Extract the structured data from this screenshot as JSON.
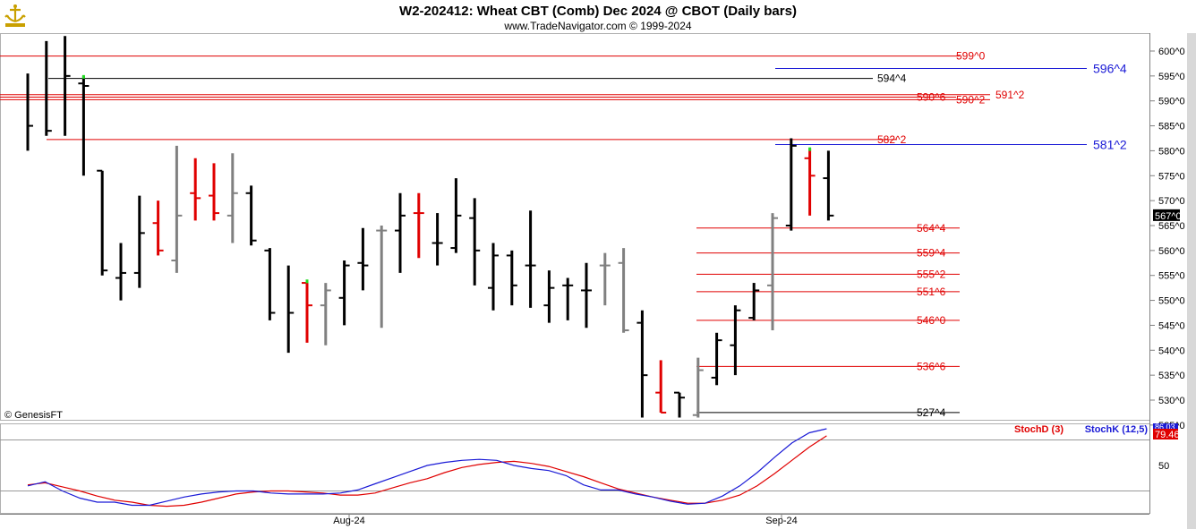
{
  "header": {
    "title": "W2-202412:  Wheat CBT (Comb) Dec 2024 @ CBOT  (Daily bars)",
    "subtitle": "www.TradeNavigator.com © 1999-2024"
  },
  "watermark": "© GenesisFT",
  "icons": {
    "logo": "anchor-ship-logo-icon"
  },
  "colors": {
    "up": "#000000",
    "down": "#e00000",
    "neutral": "#808080",
    "stochK": "#1a1ad6",
    "stochD": "#e00000",
    "level_red": "#e00000",
    "level_blue": "#1a1ad6",
    "level_black": "#000000"
  },
  "chart_data": [
    {
      "type": "ohlc",
      "title": "W2-202412:  Wheat CBT (Comb) Dec 2024 @ CBOT  (Daily bars)",
      "ylim": [
        523.0,
        603.0
      ],
      "y_ticks": [
        "600^0",
        "595^0",
        "590^0",
        "585^0",
        "580^0",
        "575^0",
        "570^0",
        "565^0",
        "560^0",
        "555^0",
        "550^0",
        "545^0",
        "540^0",
        "535^0",
        "530^0",
        "525^0"
      ],
      "x_ticks": [
        "Aug-24",
        "Sep-24"
      ],
      "last_price_label": "567^0",
      "bars": [
        {
          "h": 595.5,
          "l": 580.0,
          "c": 585.0,
          "color": "black"
        },
        {
          "h": 602.0,
          "l": 583.0,
          "c": 584.0,
          "color": "black"
        },
        {
          "h": 603.0,
          "l": 583.0,
          "c": 595.0,
          "color": "black"
        },
        {
          "h": 595.0,
          "l": 575.0,
          "c": 593.0,
          "o": 593.5,
          "color": "black",
          "mark": "green"
        },
        {
          "h": 576.0,
          "l": 555.0,
          "c": 556.0,
          "o": 576.0,
          "color": "black"
        },
        {
          "h": 561.5,
          "l": 550.0,
          "c": 555.5,
          "o": 554.5,
          "color": "black"
        },
        {
          "h": 571.0,
          "l": 552.5,
          "c": 563.5,
          "o": 555.5,
          "color": "black"
        },
        {
          "h": 570.0,
          "l": 559.0,
          "c": 560.0,
          "o": 565.5,
          "color": "red"
        },
        {
          "h": 581.0,
          "l": 555.5,
          "c": 567.0,
          "o": 558.0,
          "color": "gray"
        },
        {
          "h": 578.5,
          "l": 566.0,
          "c": 570.5,
          "o": 571.5,
          "color": "red"
        },
        {
          "h": 577.5,
          "l": 566.0,
          "c": 567.5,
          "o": 571.0,
          "color": "red"
        },
        {
          "h": 579.5,
          "l": 561.5,
          "c": 571.5,
          "o": 567.0,
          "color": "gray"
        },
        {
          "h": 573.0,
          "l": 561.0,
          "c": 562.0,
          "o": 571.5,
          "color": "black"
        },
        {
          "h": 560.5,
          "l": 546.0,
          "c": 547.5,
          "o": 560.0,
          "color": "black"
        },
        {
          "h": 557.0,
          "l": 539.5,
          "c": 547.5,
          "color": "black"
        },
        {
          "h": 554.0,
          "l": 541.5,
          "c": 549.0,
          "o": 553.5,
          "color": "red",
          "mark": "green"
        },
        {
          "h": 553.5,
          "l": 541.0,
          "c": 552.0,
          "o": 549.0,
          "color": "gray"
        },
        {
          "h": 558.0,
          "l": 545.0,
          "c": 557.0,
          "o": 550.5,
          "color": "black"
        },
        {
          "h": 564.5,
          "l": 552.0,
          "c": 557.0,
          "o": 557.5,
          "color": "black"
        },
        {
          "h": 565.0,
          "l": 544.5,
          "c": 564.0,
          "o": 564.0,
          "color": "gray"
        },
        {
          "h": 571.5,
          "l": 555.5,
          "c": 567.0,
          "o": 564.0,
          "color": "black"
        },
        {
          "h": 571.5,
          "l": 558.5,
          "c": 567.5,
          "o": 567.5,
          "color": "red"
        },
        {
          "h": 567.5,
          "l": 557.0,
          "c": 561.5,
          "o": 561.5,
          "color": "black"
        },
        {
          "h": 574.5,
          "l": 559.5,
          "c": 567.0,
          "o": 560.5,
          "color": "black"
        },
        {
          "h": 570.5,
          "l": 553.0,
          "c": 560.0,
          "o": 566.5,
          "color": "black"
        },
        {
          "h": 561.5,
          "l": 548.0,
          "c": 559.0,
          "o": 552.5,
          "color": "black"
        },
        {
          "h": 560.0,
          "l": 549.0,
          "c": 553.0,
          "o": 559.0,
          "color": "black"
        },
        {
          "h": 568.0,
          "l": 548.5,
          "c": 557.0,
          "o": 557.0,
          "color": "black"
        },
        {
          "h": 556.0,
          "l": 545.5,
          "c": 552.5,
          "o": 549.0,
          "color": "black"
        },
        {
          "h": 554.5,
          "l": 546.0,
          "c": 553.0,
          "o": 553.0,
          "color": "black"
        },
        {
          "h": 557.5,
          "l": 544.5,
          "c": 552.0,
          "o": 552.0,
          "color": "black"
        },
        {
          "h": 559.5,
          "l": 549.0,
          "c": 557.0,
          "o": 557.0,
          "color": "gray"
        },
        {
          "h": 560.5,
          "l": 543.5,
          "c": 544.0,
          "o": 557.5,
          "color": "gray"
        },
        {
          "h": 548.0,
          "l": 526.5,
          "c": 535.0,
          "o": 545.5,
          "color": "black"
        },
        {
          "h": 538.0,
          "l": 527.5,
          "c": 527.5,
          "o": 531.5,
          "color": "red"
        },
        {
          "h": 531.5,
          "l": 526.5,
          "c": 530.5,
          "o": 531.5,
          "color": "black"
        },
        {
          "h": 538.5,
          "l": 526.5,
          "c": 536.0,
          "o": 527.0,
          "color": "gray"
        },
        {
          "h": 543.5,
          "l": 533.0,
          "c": 542.0,
          "o": 534.5,
          "color": "black"
        },
        {
          "h": 549.0,
          "l": 535.0,
          "c": 548.0,
          "o": 541.0,
          "color": "black"
        },
        {
          "h": 553.5,
          "l": 546.0,
          "c": 552.0,
          "o": 546.5,
          "color": "black"
        },
        {
          "h": 567.5,
          "l": 544.0,
          "c": 566.5,
          "o": 553.0,
          "color": "gray"
        },
        {
          "h": 582.5,
          "l": 564.0,
          "c": 581.0,
          "o": 565.0,
          "color": "black"
        },
        {
          "h": 580.5,
          "l": 567.0,
          "c": 575.0,
          "o": 578.5,
          "color": "red",
          "mark": "green"
        },
        {
          "h": 580.0,
          "l": 566.0,
          "c": 567.0,
          "o": 574.5,
          "color": "black"
        }
      ],
      "levels": [
        {
          "label": "599^0",
          "value": 599.0,
          "color": "red"
        },
        {
          "label": "596^4",
          "value": 596.5,
          "color": "blue"
        },
        {
          "label": "594^4",
          "value": 594.5,
          "color": "black"
        },
        {
          "label": "591^2",
          "value": 591.25,
          "color": "red"
        },
        {
          "label": "590^6",
          "value": 590.75,
          "color": "red"
        },
        {
          "label": "590^2",
          "value": 590.25,
          "color": "red"
        },
        {
          "label": "582^2",
          "value": 582.25,
          "color": "red"
        },
        {
          "label": "581^2",
          "value": 581.25,
          "color": "blue"
        },
        {
          "label": "564^4",
          "value": 564.5,
          "color": "red"
        },
        {
          "label": "559^4",
          "value": 559.5,
          "color": "red"
        },
        {
          "label": "555^2",
          "value": 555.25,
          "color": "red"
        },
        {
          "label": "551^6",
          "value": 551.75,
          "color": "red"
        },
        {
          "label": "546^0",
          "value": 546.0,
          "color": "red"
        },
        {
          "label": "536^6",
          "value": 536.75,
          "color": "red"
        },
        {
          "label": "527^4",
          "value": 527.5,
          "color": "black"
        }
      ]
    },
    {
      "type": "line",
      "ylim": [
        0,
        100
      ],
      "y_ticks": [
        "50"
      ],
      "series": [
        {
          "name": "StochD (3)",
          "color": "#e00000",
          "last_label": "79.46",
          "values": [
            31,
            33,
            29,
            25,
            20,
            16,
            14,
            11,
            10,
            11,
            14,
            18,
            22,
            24,
            25,
            25,
            24,
            23,
            21,
            21,
            23,
            28,
            33,
            37,
            43,
            48,
            51,
            53,
            54,
            52,
            49,
            44,
            39,
            33,
            27,
            23,
            19,
            16,
            13,
            13,
            16,
            21,
            30,
            42,
            55,
            68,
            79
          ]
        },
        {
          "name": "StochK (12,5)",
          "color": "#1a1ad6",
          "last_label": "86.03",
          "values": [
            30,
            34,
            25,
            18,
            14,
            14,
            11,
            11,
            15,
            19,
            22,
            24,
            25,
            25,
            23,
            22,
            22,
            22,
            23,
            26,
            32,
            38,
            44,
            50,
            53,
            55,
            56,
            55,
            50,
            47,
            45,
            40,
            31,
            26,
            26,
            22,
            19,
            15,
            12,
            13,
            20,
            30,
            43,
            58,
            72,
            82,
            86
          ]
        }
      ]
    }
  ]
}
